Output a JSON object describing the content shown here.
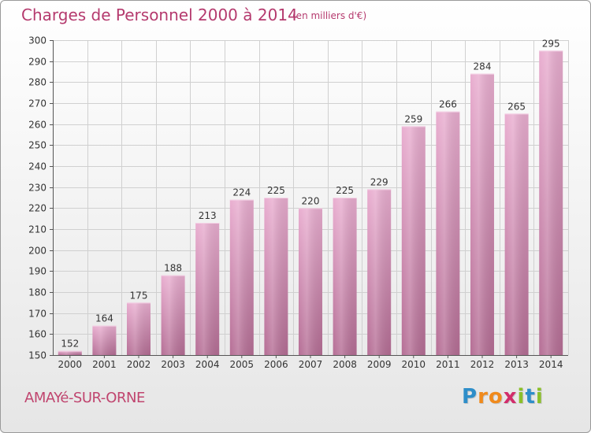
{
  "header": {
    "title": "Charges de Personnel 2000 à 2014",
    "subtitle": "(en milliers d'€)"
  },
  "footer": {
    "commune": "AMAYé-SUR-ORNE",
    "logo_text": "Proxiti",
    "logo_letters": [
      "P",
      "r",
      "o",
      "x",
      "i",
      "t",
      "i"
    ],
    "logo_colors": [
      "#2e8ec9",
      "#f08a1c",
      "#f08a1c",
      "#d22d6b",
      "#8bbf2a",
      "#2e8ec9",
      "#8bbf2a"
    ]
  },
  "colors": {
    "bar_top": "#e9aed0",
    "bar_bottom": "#b56e95",
    "title": "#b53a6e",
    "grid": "#d0d0d0",
    "axis": "#555555"
  },
  "chart_data": {
    "type": "bar",
    "title": "Charges de Personnel 2000 à 2014",
    "subtitle": "(en milliers d'€)",
    "categories": [
      "2000",
      "2001",
      "2002",
      "2003",
      "2004",
      "2005",
      "2006",
      "2007",
      "2008",
      "2009",
      "2010",
      "2011",
      "2012",
      "2013",
      "2014"
    ],
    "values": [
      152,
      164,
      175,
      188,
      213,
      224,
      225,
      220,
      225,
      229,
      259,
      266,
      284,
      265,
      295
    ],
    "ylim": [
      150,
      300
    ],
    "yticks": [
      150,
      160,
      170,
      180,
      190,
      200,
      210,
      220,
      230,
      240,
      250,
      260,
      270,
      280,
      290,
      300
    ],
    "grid": true,
    "data_labels": true,
    "xlabel": "",
    "ylabel": ""
  }
}
